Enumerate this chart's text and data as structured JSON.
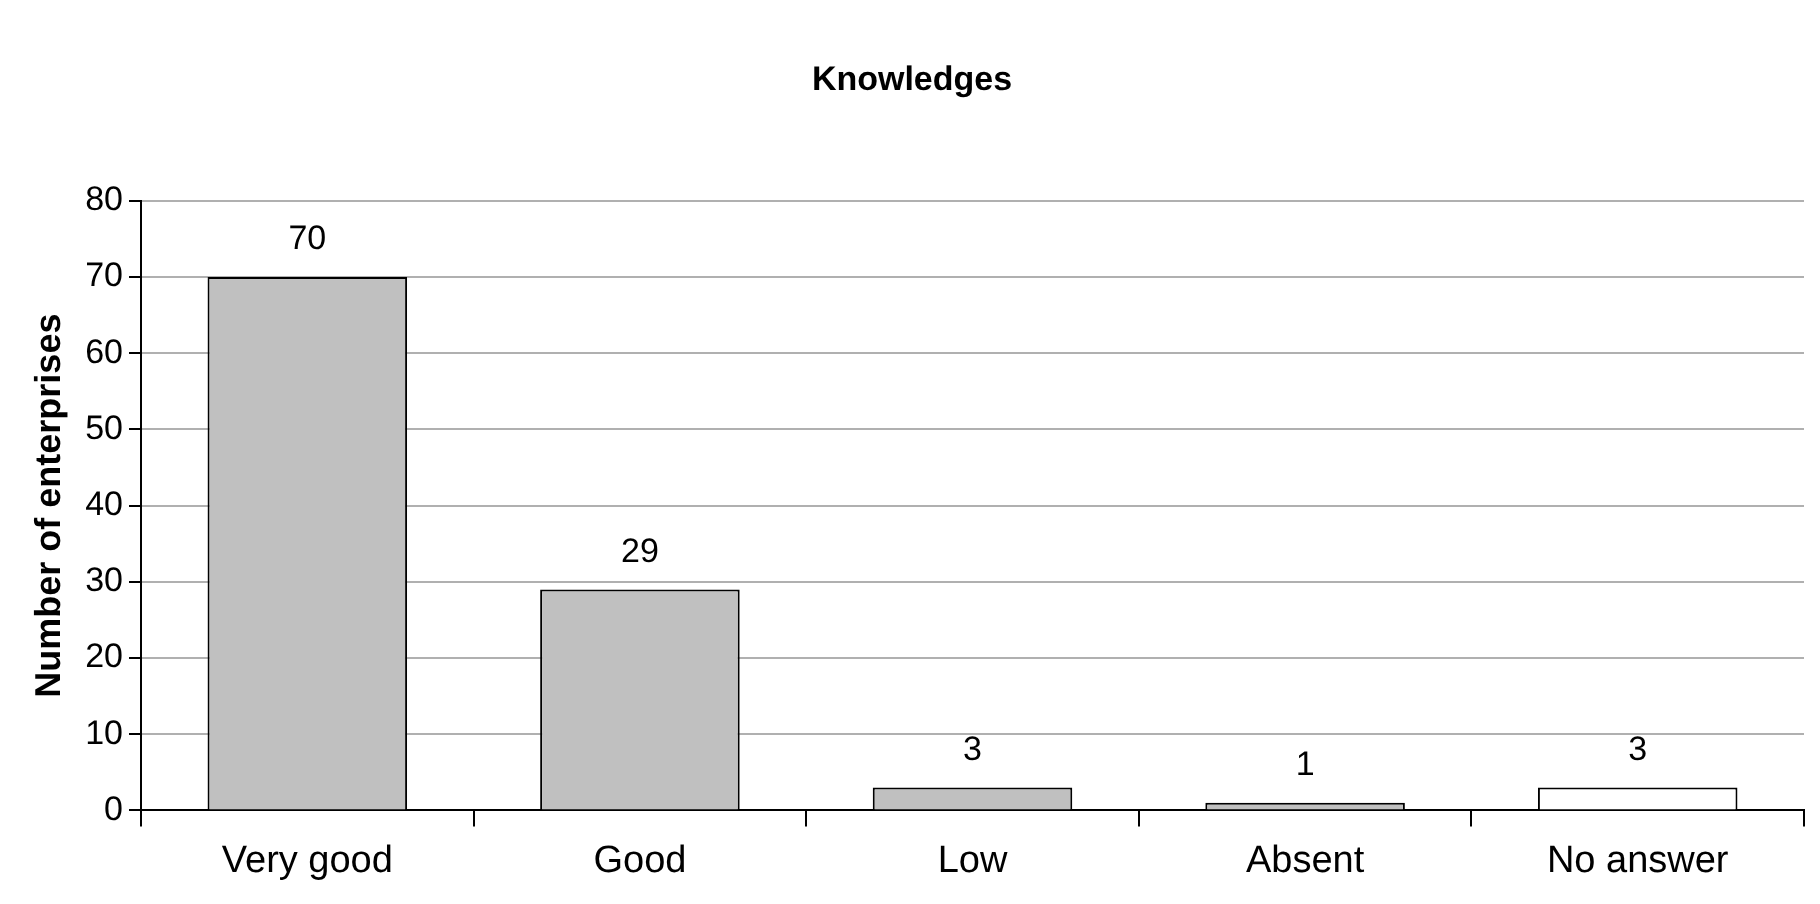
{
  "chart_data": {
    "type": "bar",
    "title": "Knowledges",
    "ylabel": "Number of enterprises",
    "categories": [
      "Very good",
      "Good",
      "Low",
      "Absent",
      "No answer"
    ],
    "values": [
      70,
      29,
      3,
      1,
      3
    ],
    "colors": [
      "#c0c0c0",
      "#c0c0c0",
      "#c0c0c0",
      "#c0c0c0",
      "#ffffff"
    ],
    "ylim": [
      0,
      80
    ],
    "yticks": [
      0,
      10,
      20,
      30,
      40,
      50,
      60,
      70,
      80
    ],
    "grid": "y",
    "data_labels": true,
    "legend": false
  }
}
